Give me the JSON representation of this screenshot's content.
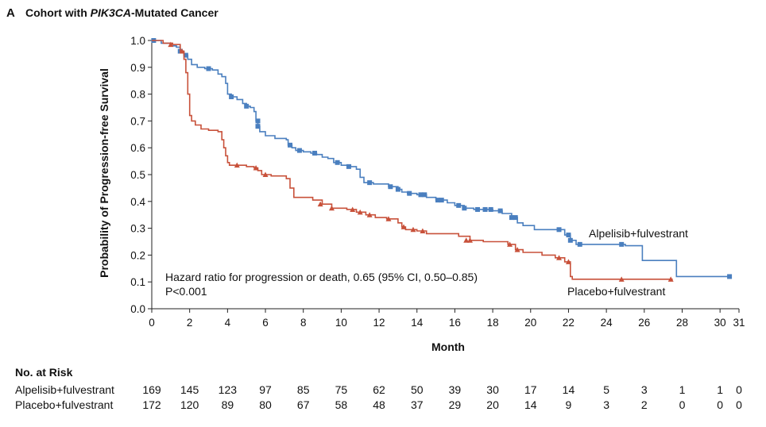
{
  "chart_data": {
    "type": "line",
    "panel_letter": "A",
    "title_parts": [
      "Cohort with ",
      "PIK3CA",
      "-Mutated Cancer"
    ],
    "xlabel": "Month",
    "ylabel": "Probability of Progression-free Survival",
    "xlim": [
      0,
      31
    ],
    "ylim": [
      0,
      1.0
    ],
    "x_ticks": [
      0,
      2,
      4,
      6,
      8,
      10,
      12,
      14,
      16,
      18,
      20,
      22,
      24,
      26,
      28,
      30,
      31
    ],
    "x_tick_labels": [
      "0",
      "2",
      "4",
      "6",
      "8",
      "10",
      "12",
      "14",
      "16",
      "18",
      "20",
      "22",
      "24",
      "26",
      "28",
      "30",
      "31"
    ],
    "y_ticks": [
      0,
      0.1,
      0.2,
      0.3,
      0.4,
      0.5,
      0.6,
      0.7,
      0.8,
      0.9,
      1.0
    ],
    "y_tick_labels": [
      "0.0",
      "0.1",
      "0.2",
      "0.3",
      "0.4",
      "0.5",
      "0.6",
      "0.7",
      "0.8",
      "0.9",
      "1.0"
    ],
    "grid": false,
    "annotations": [
      "Hazard ratio for progression or death, 0.65 (95% CI, 0.50–0.85)",
      "P<0.001"
    ],
    "series": [
      {
        "name": "Alpelisib+fulvestrant",
        "color": "#4a7fbf",
        "marker": "square",
        "steps": [
          [
            0,
            1.0
          ],
          [
            0.5,
            0.99
          ],
          [
            1.0,
            0.98
          ],
          [
            1.3,
            0.975
          ],
          [
            1.5,
            0.96
          ],
          [
            1.7,
            0.945
          ],
          [
            1.9,
            0.93
          ],
          [
            2.1,
            0.91
          ],
          [
            2.4,
            0.9
          ],
          [
            2.8,
            0.895
          ],
          [
            3.2,
            0.89
          ],
          [
            3.5,
            0.875
          ],
          [
            3.7,
            0.865
          ],
          [
            3.9,
            0.84
          ],
          [
            4.0,
            0.8
          ],
          [
            4.2,
            0.79
          ],
          [
            4.5,
            0.78
          ],
          [
            4.8,
            0.765
          ],
          [
            5.0,
            0.755
          ],
          [
            5.2,
            0.75
          ],
          [
            5.4,
            0.735
          ],
          [
            5.5,
            0.7
          ],
          [
            5.6,
            0.68
          ],
          [
            5.7,
            0.66
          ],
          [
            6.0,
            0.645
          ],
          [
            6.5,
            0.635
          ],
          [
            7.1,
            0.63
          ],
          [
            7.2,
            0.61
          ],
          [
            7.4,
            0.6
          ],
          [
            7.6,
            0.59
          ],
          [
            8.0,
            0.585
          ],
          [
            8.4,
            0.58
          ],
          [
            8.7,
            0.575
          ],
          [
            9.0,
            0.565
          ],
          [
            9.3,
            0.56
          ],
          [
            9.6,
            0.545
          ],
          [
            10.0,
            0.535
          ],
          [
            10.5,
            0.53
          ],
          [
            10.8,
            0.52
          ],
          [
            11.0,
            0.49
          ],
          [
            11.2,
            0.47
          ],
          [
            11.7,
            0.465
          ],
          [
            12.5,
            0.455
          ],
          [
            13.0,
            0.445
          ],
          [
            13.2,
            0.435
          ],
          [
            13.5,
            0.43
          ],
          [
            14.0,
            0.425
          ],
          [
            14.5,
            0.415
          ],
          [
            15.0,
            0.405
          ],
          [
            15.6,
            0.395
          ],
          [
            16.0,
            0.385
          ],
          [
            16.5,
            0.375
          ],
          [
            17.0,
            0.37
          ],
          [
            18.0,
            0.365
          ],
          [
            18.5,
            0.355
          ],
          [
            19.0,
            0.34
          ],
          [
            19.3,
            0.32
          ],
          [
            19.6,
            0.31
          ],
          [
            20.2,
            0.295
          ],
          [
            21.8,
            0.275
          ],
          [
            22.1,
            0.255
          ],
          [
            22.4,
            0.24
          ],
          [
            24.0,
            0.24
          ],
          [
            25.0,
            0.235
          ],
          [
            25.9,
            0.18
          ],
          [
            27.7,
            0.12
          ],
          [
            30.5,
            0.12
          ]
        ],
        "censor_marks": [
          [
            0.1,
            1.0
          ],
          [
            1.5,
            0.96
          ],
          [
            1.8,
            0.945
          ],
          [
            3.0,
            0.895
          ],
          [
            4.2,
            0.79
          ],
          [
            5.0,
            0.755
          ],
          [
            5.6,
            0.7
          ],
          [
            5.6,
            0.68
          ],
          [
            7.3,
            0.61
          ],
          [
            7.8,
            0.59
          ],
          [
            8.6,
            0.58
          ],
          [
            9.8,
            0.545
          ],
          [
            10.4,
            0.53
          ],
          [
            11.5,
            0.47
          ],
          [
            12.6,
            0.455
          ],
          [
            13.0,
            0.445
          ],
          [
            13.6,
            0.43
          ],
          [
            14.2,
            0.425
          ],
          [
            14.4,
            0.425
          ],
          [
            15.1,
            0.405
          ],
          [
            15.3,
            0.405
          ],
          [
            16.2,
            0.385
          ],
          [
            16.5,
            0.375
          ],
          [
            17.2,
            0.37
          ],
          [
            17.6,
            0.37
          ],
          [
            17.9,
            0.37
          ],
          [
            18.4,
            0.365
          ],
          [
            19.0,
            0.34
          ],
          [
            19.2,
            0.34
          ],
          [
            21.5,
            0.295
          ],
          [
            22.0,
            0.275
          ],
          [
            22.1,
            0.255
          ],
          [
            22.6,
            0.24
          ],
          [
            24.8,
            0.24
          ],
          [
            30.5,
            0.12
          ]
        ]
      },
      {
        "name": "Placebo+fulvestrant",
        "color": "#c8513a",
        "marker": "triangle",
        "steps": [
          [
            0,
            1.0
          ],
          [
            0.6,
            0.99
          ],
          [
            1.1,
            0.985
          ],
          [
            1.5,
            0.96
          ],
          [
            1.7,
            0.93
          ],
          [
            1.8,
            0.88
          ],
          [
            1.9,
            0.8
          ],
          [
            2.0,
            0.72
          ],
          [
            2.1,
            0.7
          ],
          [
            2.3,
            0.685
          ],
          [
            2.6,
            0.67
          ],
          [
            3.0,
            0.665
          ],
          [
            3.5,
            0.66
          ],
          [
            3.7,
            0.63
          ],
          [
            3.8,
            0.6
          ],
          [
            3.9,
            0.57
          ],
          [
            4.0,
            0.545
          ],
          [
            4.1,
            0.535
          ],
          [
            5.0,
            0.53
          ],
          [
            5.4,
            0.525
          ],
          [
            5.6,
            0.515
          ],
          [
            5.8,
            0.5
          ],
          [
            6.3,
            0.495
          ],
          [
            7.1,
            0.485
          ],
          [
            7.3,
            0.45
          ],
          [
            7.5,
            0.415
          ],
          [
            8.5,
            0.405
          ],
          [
            9.0,
            0.39
          ],
          [
            9.5,
            0.375
          ],
          [
            10.3,
            0.37
          ],
          [
            10.8,
            0.36
          ],
          [
            11.3,
            0.35
          ],
          [
            11.8,
            0.34
          ],
          [
            12.4,
            0.335
          ],
          [
            13.0,
            0.32
          ],
          [
            13.2,
            0.305
          ],
          [
            13.4,
            0.295
          ],
          [
            14.0,
            0.29
          ],
          [
            14.5,
            0.28
          ],
          [
            16.2,
            0.27
          ],
          [
            16.8,
            0.255
          ],
          [
            17.5,
            0.25
          ],
          [
            18.8,
            0.24
          ],
          [
            19.2,
            0.22
          ],
          [
            19.6,
            0.21
          ],
          [
            20.6,
            0.2
          ],
          [
            21.3,
            0.19
          ],
          [
            21.8,
            0.175
          ],
          [
            22.1,
            0.12
          ],
          [
            22.2,
            0.11
          ],
          [
            27.5,
            0.11
          ]
        ],
        "censor_marks": [
          [
            1.0,
            0.985
          ],
          [
            1.6,
            0.96
          ],
          [
            4.5,
            0.535
          ],
          [
            5.5,
            0.525
          ],
          [
            6.0,
            0.5
          ],
          [
            8.9,
            0.39
          ],
          [
            9.5,
            0.375
          ],
          [
            10.6,
            0.37
          ],
          [
            11.0,
            0.36
          ],
          [
            11.5,
            0.35
          ],
          [
            12.5,
            0.335
          ],
          [
            13.3,
            0.305
          ],
          [
            13.8,
            0.295
          ],
          [
            14.3,
            0.29
          ],
          [
            16.6,
            0.255
          ],
          [
            16.8,
            0.255
          ],
          [
            18.9,
            0.24
          ],
          [
            19.3,
            0.22
          ],
          [
            21.5,
            0.19
          ],
          [
            22.0,
            0.175
          ],
          [
            24.8,
            0.11
          ],
          [
            27.4,
            0.11
          ]
        ]
      }
    ]
  },
  "risk_table": {
    "heading": "No. at Risk",
    "rows": [
      {
        "label": "Alpelisib+fulvestrant",
        "values": [
          "169",
          "145",
          "123",
          "97",
          "85",
          "75",
          "62",
          "50",
          "39",
          "30",
          "17",
          "14",
          "5",
          "3",
          "1",
          "1",
          "0"
        ]
      },
      {
        "label": "Placebo+fulvestrant",
        "values": [
          "172",
          "120",
          "89",
          "80",
          "67",
          "58",
          "48",
          "37",
          "29",
          "20",
          "14",
          "9",
          "3",
          "2",
          "0",
          "0",
          "0"
        ]
      }
    ]
  }
}
